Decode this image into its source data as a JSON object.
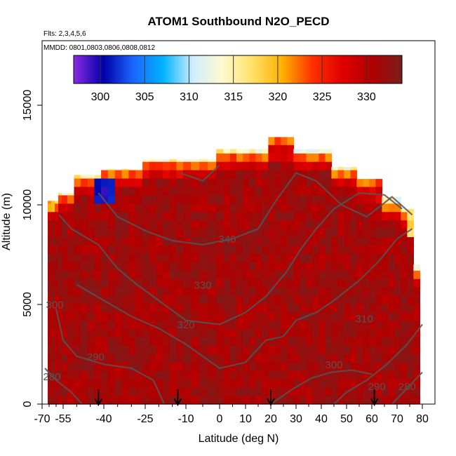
{
  "chart_data": {
    "type": "heatmap",
    "title": "ATOM1 Southbound N2O_PECD",
    "flights_note": "Flts: 2,3,4,5,6",
    "dates_note": "MMDD: 0801,0803,0806,0808,0812",
    "xlabel": "Latitude (deg N)",
    "ylabel": "Altitude (m)",
    "x_ticks": [
      "-70",
      "-55",
      "-40",
      "-25",
      "-10",
      "0",
      "10",
      "20",
      "30",
      "40",
      "50",
      "60",
      "70",
      "80"
    ],
    "x_tick_values": [
      -70,
      -55,
      -40,
      -25,
      -10,
      0,
      10,
      20,
      30,
      40,
      50,
      60,
      70,
      80
    ],
    "y_ticks": [
      "0",
      "5000",
      "10000",
      "15000"
    ],
    "y_tick_values": [
      0,
      5000,
      10000,
      15000
    ],
    "colorbar": {
      "ticks": [
        "300",
        "305",
        "310",
        "315",
        "320",
        "325",
        "330"
      ],
      "tick_values": [
        300,
        305,
        310,
        315,
        320,
        325,
        330
      ],
      "range": [
        297,
        334
      ],
      "colors": [
        "#8a2be2",
        "#0000a8",
        "#1a66ff",
        "#00b4ff",
        "#cfeeff",
        "#fffacd",
        "#ffe066",
        "#ffb000",
        "#ff3000",
        "#e00000",
        "#b00000",
        "#7a1e1e"
      ]
    },
    "value_range": [
      297,
      334
    ],
    "contour_levels": [
      {
        "label": "280",
        "lat": -63,
        "alt": 1200
      },
      {
        "label": "290",
        "lat": -43,
        "alt": 2200
      },
      {
        "label": "300",
        "lat": -61,
        "alt": 4800
      },
      {
        "label": "310",
        "lat": 57,
        "alt": 4100
      },
      {
        "label": "320",
        "lat": -10,
        "alt": 3800
      },
      {
        "label": "330",
        "lat": -5,
        "alt": 5800
      },
      {
        "label": "340",
        "lat": 3,
        "alt": 8100
      },
      {
        "label": "300",
        "lat": 45,
        "alt": 1800
      },
      {
        "label": "290",
        "lat": 62,
        "alt": 700
      },
      {
        "label": "280",
        "lat": 74,
        "alt": 700
      }
    ],
    "arrows_lat": [
      -42,
      -13,
      20,
      61
    ]
  }
}
